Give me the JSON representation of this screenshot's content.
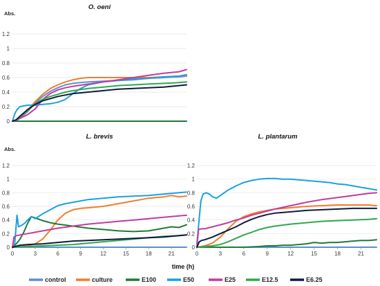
{
  "xlabel": "time (h)",
  "legend": [
    {
      "name": "control",
      "color": "#5b8fd1"
    },
    {
      "name": "culture",
      "color": "#f47c2c"
    },
    {
      "name": "E100",
      "color": "#1f7a36"
    },
    {
      "name": "E50",
      "color": "#1aa0e0"
    },
    {
      "name": "E25",
      "color": "#c13ba0"
    },
    {
      "name": "E12.5",
      "color": "#2ea84c"
    },
    {
      "name": "E6.25",
      "color": "#0d1b3c"
    }
  ],
  "chart_data": [
    {
      "type": "line",
      "title": "O. oeni",
      "ylabel": "Abs.",
      "xlim": [
        0,
        23
      ],
      "ylim": [
        0,
        1.2
      ],
      "yticks": [
        "0",
        "0.2",
        "0.4",
        "0.6",
        "0.8",
        "1",
        "1.2"
      ],
      "xticks": [],
      "grid": true,
      "series": [
        {
          "name": "control",
          "x": [
            0,
            0.5,
            1,
            2,
            3,
            4,
            5,
            6,
            7,
            8,
            9,
            10,
            12,
            14,
            16,
            18,
            20,
            22,
            23
          ],
          "y": [
            0,
            0.01,
            0.04,
            0.13,
            0.25,
            0.34,
            0.41,
            0.46,
            0.5,
            0.52,
            0.53,
            0.54,
            0.55,
            0.56,
            0.57,
            0.59,
            0.6,
            0.61,
            0.62
          ]
        },
        {
          "name": "culture",
          "x": [
            0,
            0.5,
            1,
            2,
            3,
            4,
            5,
            6,
            7,
            8,
            9,
            10,
            12,
            14,
            16,
            18,
            20,
            22,
            23
          ],
          "y": [
            0,
            0.01,
            0.05,
            0.15,
            0.27,
            0.37,
            0.45,
            0.5,
            0.54,
            0.57,
            0.59,
            0.6,
            0.6,
            0.6,
            0.6,
            0.6,
            0.61,
            0.62,
            0.63
          ]
        },
        {
          "name": "E100",
          "x": [
            0,
            23
          ],
          "y": [
            0,
            0
          ]
        },
        {
          "name": "E50",
          "x": [
            0,
            0.3,
            0.6,
            1,
            2,
            3,
            4,
            5,
            6,
            7,
            8,
            9,
            10,
            12,
            14,
            16,
            18,
            20,
            22,
            23
          ],
          "y": [
            0,
            0.1,
            0.16,
            0.2,
            0.22,
            0.22,
            0.23,
            0.24,
            0.26,
            0.3,
            0.38,
            0.45,
            0.5,
            0.54,
            0.56,
            0.58,
            0.59,
            0.61,
            0.62,
            0.64
          ]
        },
        {
          "name": "E25",
          "x": [
            0,
            0.5,
            1,
            2,
            3,
            4,
            5,
            6,
            7,
            8,
            10,
            12,
            14,
            16,
            18,
            20,
            22,
            23
          ],
          "y": [
            0,
            0.01,
            0.04,
            0.09,
            0.17,
            0.3,
            0.38,
            0.43,
            0.46,
            0.48,
            0.51,
            0.54,
            0.57,
            0.6,
            0.63,
            0.66,
            0.68,
            0.71
          ]
        },
        {
          "name": "E12.5",
          "x": [
            0,
            0.5,
            1,
            2,
            3,
            4,
            5,
            6,
            7,
            8,
            10,
            12,
            14,
            16,
            18,
            20,
            22,
            23
          ],
          "y": [
            0,
            0.02,
            0.06,
            0.15,
            0.24,
            0.3,
            0.34,
            0.37,
            0.4,
            0.42,
            0.45,
            0.47,
            0.49,
            0.5,
            0.51,
            0.52,
            0.53,
            0.54
          ]
        },
        {
          "name": "E6.25",
          "x": [
            0,
            0.5,
            1,
            2,
            3,
            4,
            5,
            6,
            7,
            8,
            10,
            12,
            14,
            16,
            18,
            20,
            22,
            23
          ],
          "y": [
            0,
            0.02,
            0.07,
            0.16,
            0.23,
            0.28,
            0.31,
            0.34,
            0.36,
            0.38,
            0.4,
            0.42,
            0.44,
            0.45,
            0.46,
            0.47,
            0.49,
            0.5
          ]
        }
      ]
    },
    {
      "type": "line",
      "title": "L. brevis",
      "ylabel": "Abs.",
      "xlim": [
        0,
        23
      ],
      "ylim": [
        0,
        1.2
      ],
      "yticks": [
        "0",
        "0.2",
        "0.4",
        "0.6",
        "0.8",
        "1",
        "1.2"
      ],
      "xticks": [
        "0",
        "3",
        "6",
        "9",
        "12",
        "15",
        "18",
        "21"
      ],
      "grid": true,
      "series": [
        {
          "name": "control",
          "x": [
            0,
            23
          ],
          "y": [
            0,
            0
          ]
        },
        {
          "name": "culture",
          "x": [
            0,
            1,
            2,
            3,
            4,
            5,
            6,
            7,
            8,
            9,
            10,
            11,
            12,
            13,
            14,
            15,
            16,
            17,
            18,
            19,
            20,
            21,
            22,
            23
          ],
          "y": [
            0,
            0.01,
            0.02,
            0.05,
            0.12,
            0.25,
            0.4,
            0.5,
            0.55,
            0.57,
            0.58,
            0.59,
            0.6,
            0.62,
            0.64,
            0.66,
            0.68,
            0.7,
            0.72,
            0.73,
            0.74,
            0.76,
            0.74,
            0.75
          ]
        },
        {
          "name": "E100",
          "x": [
            0,
            0.5,
            1,
            1.5,
            2,
            2.5,
            3,
            4,
            5,
            6,
            8,
            10,
            12,
            14,
            16,
            18,
            19,
            20,
            21,
            22,
            23
          ],
          "y": [
            0,
            0.05,
            0.12,
            0.22,
            0.35,
            0.45,
            0.43,
            0.39,
            0.36,
            0.34,
            0.31,
            0.28,
            0.26,
            0.24,
            0.23,
            0.24,
            0.26,
            0.28,
            0.3,
            0.29,
            0.33
          ]
        },
        {
          "name": "E50",
          "x": [
            0,
            0.3,
            0.6,
            0.8,
            1.2,
            1.6,
            2,
            2.5,
            3,
            4,
            5,
            6,
            7,
            8,
            9,
            10,
            12,
            14,
            16,
            18,
            20,
            22,
            23
          ],
          "y": [
            0,
            0.05,
            0.47,
            0.3,
            0.32,
            0.35,
            0.4,
            0.45,
            0.42,
            0.49,
            0.55,
            0.61,
            0.64,
            0.66,
            0.68,
            0.7,
            0.72,
            0.74,
            0.75,
            0.76,
            0.78,
            0.8,
            0.81
          ]
        },
        {
          "name": "E25",
          "x": [
            0,
            0.2,
            0.5,
            1,
            2,
            3,
            4,
            5,
            6,
            8,
            10,
            12,
            14,
            16,
            18,
            20,
            22,
            23
          ],
          "y": [
            0,
            0.15,
            0.17,
            0.18,
            0.2,
            0.22,
            0.24,
            0.26,
            0.28,
            0.31,
            0.34,
            0.36,
            0.38,
            0.4,
            0.42,
            0.44,
            0.46,
            0.47
          ]
        },
        {
          "name": "E12.5",
          "x": [
            0,
            2,
            4,
            6,
            8,
            10,
            12,
            14,
            16,
            18,
            20,
            22,
            23
          ],
          "y": [
            0,
            0.01,
            0.02,
            0.03,
            0.04,
            0.06,
            0.08,
            0.1,
            0.12,
            0.14,
            0.16,
            0.17,
            0.18
          ]
        },
        {
          "name": "E6.25",
          "x": [
            0,
            1,
            2,
            4,
            6,
            8,
            10,
            12,
            14,
            16,
            18,
            20,
            22,
            23
          ],
          "y": [
            0,
            0.03,
            0.04,
            0.05,
            0.07,
            0.09,
            0.1,
            0.11,
            0.12,
            0.13,
            0.14,
            0.15,
            0.17,
            0.18
          ]
        }
      ]
    },
    {
      "type": "line",
      "title": "L. plantarum",
      "ylabel": "",
      "xlim": [
        0,
        23
      ],
      "ylim": [
        0,
        1.2
      ],
      "yticks": [
        "0",
        "0.2",
        "0.4",
        "0.6",
        "0.8",
        "1",
        "1.2"
      ],
      "xticks": [
        "0",
        "3",
        "6",
        "9",
        "12",
        "15",
        "18",
        "21"
      ],
      "grid": true,
      "series": [
        {
          "name": "control",
          "x": [
            0,
            23
          ],
          "y": [
            0,
            0
          ]
        },
        {
          "name": "culture",
          "x": [
            0,
            1,
            2,
            3,
            4,
            5,
            6,
            7,
            8,
            9,
            10,
            12,
            14,
            16,
            18,
            20,
            22,
            23
          ],
          "y": [
            0,
            0.02,
            0.06,
            0.15,
            0.27,
            0.38,
            0.45,
            0.49,
            0.52,
            0.54,
            0.56,
            0.58,
            0.6,
            0.61,
            0.62,
            0.62,
            0.62,
            0.61
          ]
        },
        {
          "name": "E100",
          "x": [
            0,
            2,
            4,
            6,
            8,
            9,
            10,
            11,
            12,
            13,
            14,
            15,
            16,
            17,
            18,
            19,
            20,
            21,
            22,
            23
          ],
          "y": [
            0,
            0,
            0,
            0,
            0.01,
            0.02,
            0.02,
            0.03,
            0.03,
            0.04,
            0.05,
            0.07,
            0.06,
            0.07,
            0.07,
            0.08,
            0.09,
            0.1,
            0.1,
            0.11
          ]
        },
        {
          "name": "E50",
          "x": [
            0,
            0.5,
            0.8,
            1.2,
            1.6,
            2,
            2.5,
            3,
            4,
            5,
            6,
            7,
            8,
            9,
            10,
            11,
            12,
            13,
            14,
            15,
            16,
            17,
            18,
            19,
            20,
            21,
            22,
            23
          ],
          "y": [
            0.05,
            0.68,
            0.78,
            0.8,
            0.78,
            0.74,
            0.72,
            0.76,
            0.84,
            0.9,
            0.95,
            0.98,
            1.0,
            1.01,
            1.01,
            1.0,
            1.0,
            0.99,
            0.98,
            0.97,
            0.96,
            0.95,
            0.93,
            0.92,
            0.9,
            0.88,
            0.86,
            0.84
          ]
        },
        {
          "name": "E25",
          "x": [
            0,
            0.2,
            0.5,
            1,
            2,
            3,
            4,
            5,
            6,
            7,
            8,
            10,
            12,
            14,
            16,
            18,
            20,
            22,
            23
          ],
          "y": [
            0,
            0.26,
            0.27,
            0.27,
            0.3,
            0.33,
            0.36,
            0.4,
            0.43,
            0.47,
            0.5,
            0.56,
            0.61,
            0.66,
            0.7,
            0.73,
            0.76,
            0.79,
            0.8
          ]
        },
        {
          "name": "E12.5",
          "x": [
            0,
            1,
            2,
            3,
            4,
            5,
            6,
            7,
            8,
            9,
            10,
            12,
            14,
            16,
            18,
            20,
            22,
            23
          ],
          "y": [
            0,
            0.01,
            0.02,
            0.04,
            0.08,
            0.13,
            0.18,
            0.22,
            0.26,
            0.29,
            0.31,
            0.34,
            0.36,
            0.38,
            0.39,
            0.4,
            0.41,
            0.42
          ]
        },
        {
          "name": "E6.25",
          "x": [
            0,
            0.3,
            0.6,
            1,
            2,
            3,
            4,
            5,
            6,
            7,
            8,
            9,
            10,
            12,
            14,
            16,
            18,
            20,
            22,
            23
          ],
          "y": [
            0,
            0.08,
            0.1,
            0.11,
            0.15,
            0.2,
            0.25,
            0.3,
            0.36,
            0.41,
            0.45,
            0.48,
            0.5,
            0.52,
            0.54,
            0.55,
            0.56,
            0.57,
            0.57,
            0.57
          ]
        }
      ]
    }
  ]
}
